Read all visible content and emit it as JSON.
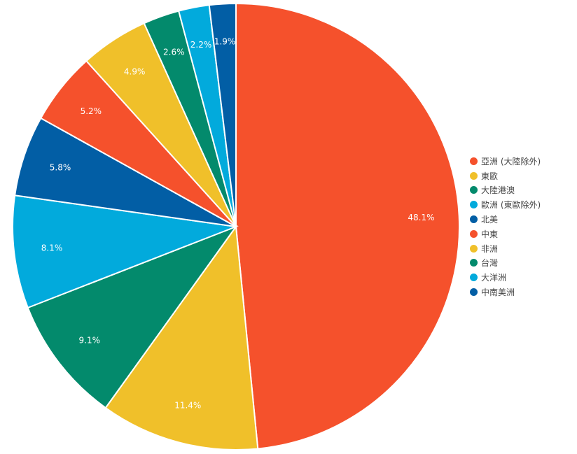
{
  "chart_data": {
    "type": "pie",
    "start_angle_deg": 0,
    "direction": "clockwise",
    "slices": [
      {
        "label": "亞洲 (大陸除外)",
        "value": 48.1,
        "display": "48.1%",
        "color": "#f5512c"
      },
      {
        "label": "東歐",
        "value": 11.4,
        "display": "11.4%",
        "color": "#f0c02a"
      },
      {
        "label": "大陸港澳",
        "value": 9.1,
        "display": "9.1%",
        "color": "#038a6c"
      },
      {
        "label": "歐洲 (東歐除外)",
        "value": 8.1,
        "display": "8.1%",
        "color": "#02aadc"
      },
      {
        "label": "北美",
        "value": 5.8,
        "display": "5.8%",
        "color": "#025ea5"
      },
      {
        "label": "中東",
        "value": 5.2,
        "display": "5.2%",
        "color": "#f5512c"
      },
      {
        "label": "非洲",
        "value": 4.9,
        "display": "4.9%",
        "color": "#f0c02a"
      },
      {
        "label": "台灣",
        "value": 2.6,
        "display": "2.6%",
        "color": "#038a6c"
      },
      {
        "label": "大洋洲",
        "value": 2.2,
        "display": "2.2%",
        "color": "#02aadc"
      },
      {
        "label": "中南美洲",
        "value": 1.9,
        "display": "1.9%",
        "color": "#025ea5"
      }
    ],
    "legend_placement": "right"
  }
}
